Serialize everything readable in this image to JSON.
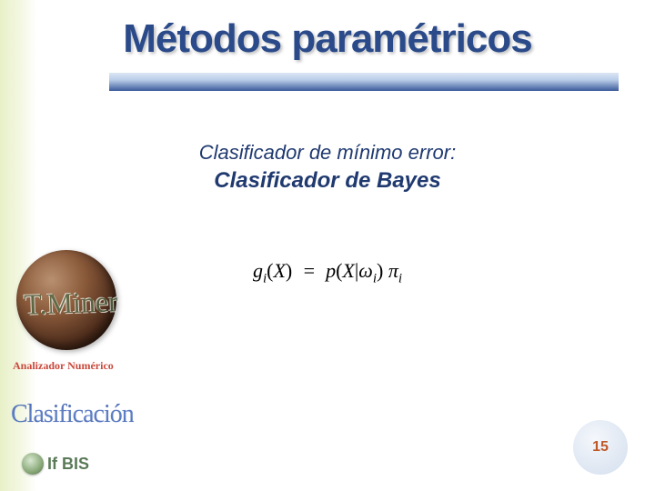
{
  "slide": {
    "title": "Métodos paramétricos",
    "subtitle1": "Clasificador de mínimo error:",
    "subtitle2": "Clasificador de Bayes",
    "formula_html": "g<span class='sub'>i</span><span class='paren'>(</span>X<span class='paren'>)</span>&nbsp;&nbsp;=&nbsp;&nbsp;p<span class='paren'>(</span>X<span class='paren'>|</span>ω<span class='sub'>i</span><span class='paren'>)</span>&nbsp;π<span class='sub'>i</span>",
    "page_number": "15"
  },
  "sidebar": {
    "miner_script": "T.Miner",
    "analizador_label": "Analizador Numérico",
    "clasificacion_label": "Clasificación",
    "ifbis_label": "If BIS"
  },
  "colors": {
    "title_color": "#2a4a8a",
    "subtitle_color": "#203a70",
    "page_number_color": "#c05828",
    "analizador_color": "#c9473a",
    "ifbis_color": "#5a7a58",
    "left_gradient_start": "#e8f0c8"
  }
}
